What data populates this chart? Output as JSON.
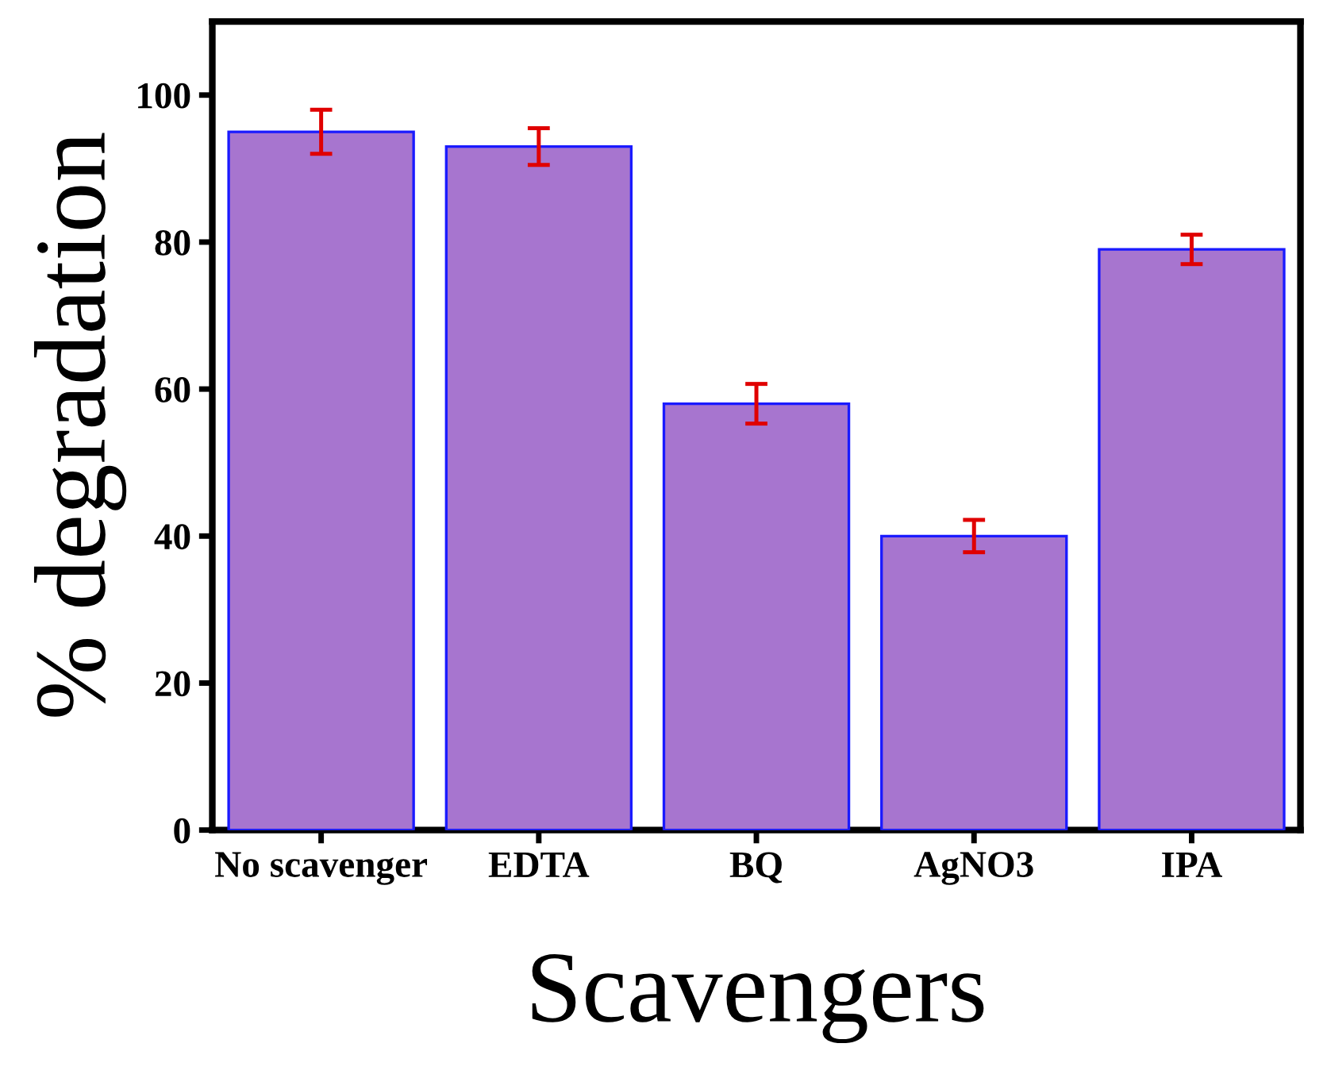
{
  "chart_data": {
    "type": "bar",
    "xlabel": "Scavengers",
    "ylabel": "% degradation",
    "categories": [
      "No scavenger",
      "EDTA",
      "BQ",
      "AgNO3",
      "IPA"
    ],
    "values": [
      95,
      93,
      58,
      40,
      79
    ],
    "errors": [
      3,
      2.5,
      2.7,
      2.2,
      2
    ],
    "color": "#a775cf",
    "ylim": [
      0,
      110
    ],
    "yticks": [
      0,
      20,
      40,
      60,
      80,
      100
    ],
    "grid": false,
    "legend": false
  }
}
